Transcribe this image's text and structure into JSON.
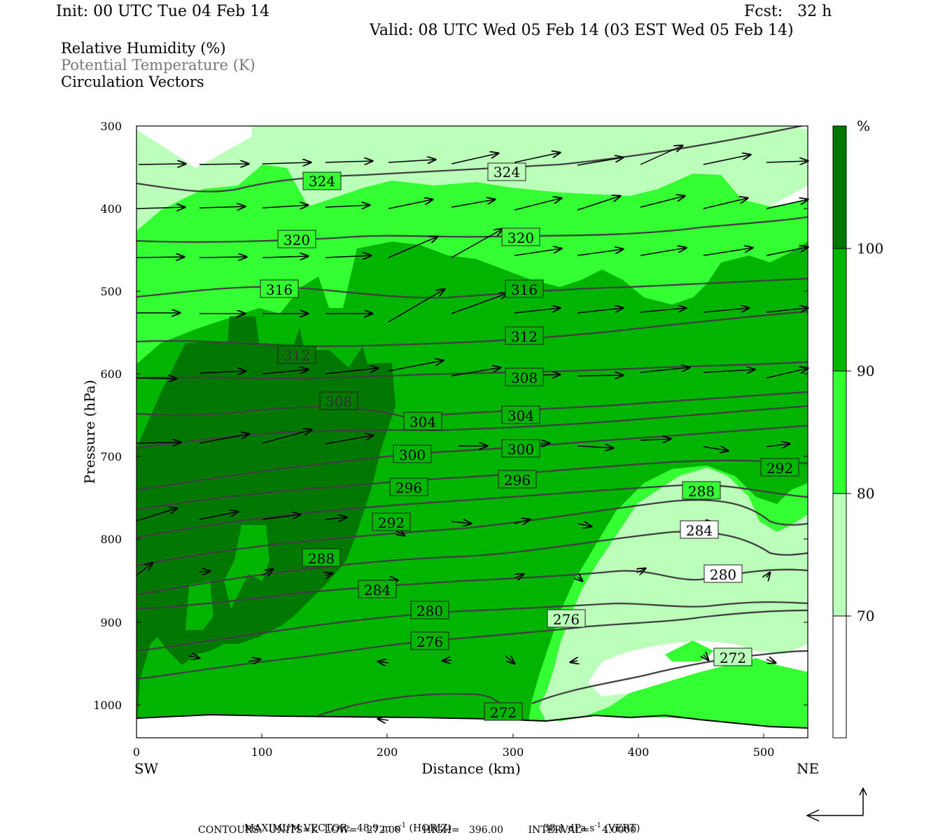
{
  "header": {
    "init": "Init: 00 UTC Tue 04 Feb 14",
    "fcst": "Fcst:   32 h",
    "valid": "Valid: 08 UTC Wed 05 Feb 14 (03 EST Wed 05 Feb 14)"
  },
  "variables": [
    "Relative Humidity (%)",
    "Potential Temperature (K)",
    "Circulation Vectors"
  ],
  "axes": {
    "x_label": "Distance (km)",
    "y_label": "Pressure (hPa)",
    "left_end": "SW",
    "right_end": "NE"
  },
  "colorbar": {
    "unit": "%",
    "levels": [
      "100",
      "90",
      "80",
      "70"
    ],
    "colors": [
      "#007800",
      "#00b400",
      "#33ff33",
      "#bbffbb",
      "#ffffff"
    ]
  },
  "footer": {
    "max_vector_label": "MAXIMUM VECTOR:",
    "horiz_value": "48.9 m s",
    "horiz_exp": "-1",
    "horiz_tag": "(HORIZ)",
    "vert_value": "38.1 dPa s",
    "vert_exp": "-1",
    "vert_tag": "(VERT)",
    "contours_line": "CONTOURS:  UNITS=K  LOW=   272.00       HIGH=   396.00        INTERVAL=    4.0000"
  },
  "chart_data": {
    "type": "cross-section",
    "x": {
      "label": "Distance (km)",
      "min": 0,
      "max": 535,
      "ticks": [
        0,
        100,
        200,
        300,
        400,
        500
      ]
    },
    "y": {
      "label": "Pressure (hPa)",
      "min": 300,
      "max": 1040,
      "inverted": true,
      "ticks": [
        300,
        400,
        500,
        600,
        700,
        800,
        900,
        1000
      ]
    },
    "theta_contour_labels": [
      {
        "value": "324",
        "x": 147,
        "p": 368
      },
      {
        "value": "324",
        "x": 296,
        "p": 355
      },
      {
        "value": "320",
        "x": 128,
        "p": 437
      },
      {
        "value": "320",
        "x": 307,
        "p": 434
      },
      {
        "value": "316",
        "x": 114,
        "p": 498
      },
      {
        "value": "316",
        "x": 308,
        "p": 497
      },
      {
        "value": "312",
        "x": 128,
        "p": 575
      },
      {
        "value": "312",
        "x": 308,
        "p": 554
      },
      {
        "value": "308",
        "x": 161,
        "p": 631
      },
      {
        "value": "308",
        "x": 308,
        "p": 603
      },
      {
        "value": "304",
        "x": 228,
        "p": 660
      },
      {
        "value": "304",
        "x": 307,
        "p": 653
      },
      {
        "value": "300",
        "x": 220,
        "p": 699
      },
      {
        "value": "300",
        "x": 307,
        "p": 692
      },
      {
        "value": "296",
        "x": 217,
        "p": 737
      },
      {
        "value": "296",
        "x": 303,
        "p": 730
      },
      {
        "value": "292",
        "x": 204,
        "p": 780
      },
      {
        "value": "292",
        "x": 512,
        "p": 713
      },
      {
        "value": "288",
        "x": 147,
        "p": 822
      },
      {
        "value": "288",
        "x": 450,
        "p": 744
      },
      {
        "value": "284",
        "x": 192,
        "p": 862
      },
      {
        "value": "284",
        "x": 450,
        "p": 791
      },
      {
        "value": "280",
        "x": 233,
        "p": 885
      },
      {
        "value": "280",
        "x": 467,
        "p": 844
      },
      {
        "value": "276",
        "x": 233,
        "p": 923
      },
      {
        "value": "276",
        "x": 343,
        "p": 898
      },
      {
        "value": "272",
        "x": 292,
        "p": 1011
      },
      {
        "value": "272",
        "x": 476,
        "p": 963
      }
    ],
    "rh_levels": [
      70,
      80,
      90,
      100
    ]
  }
}
